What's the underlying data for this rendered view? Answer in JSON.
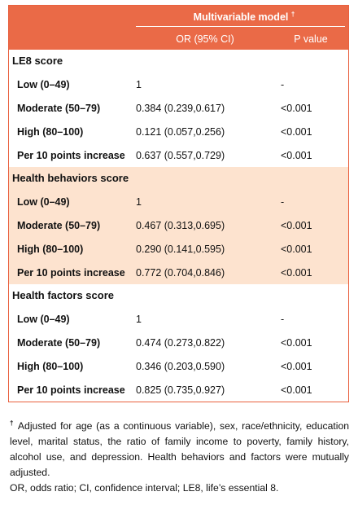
{
  "header": {
    "model_title": "Multivariable model",
    "dagger": "†",
    "col_or": "OR (95% CI)",
    "col_p": "P value"
  },
  "sections": [
    {
      "title": "LE8 score",
      "rows": [
        {
          "label": "Low (0–49)",
          "or": "1",
          "p": "-"
        },
        {
          "label": "Moderate (50–79)",
          "or": "0.384 (0.239,0.617)",
          "p": "<0.001"
        },
        {
          "label": "High (80–100)",
          "or": "0.121 (0.057,0.256)",
          "p": "<0.001"
        },
        {
          "label": "Per 10 points increase",
          "or": "0.637 (0.557,0.729)",
          "p": "<0.001"
        }
      ]
    },
    {
      "title": "Health behaviors score",
      "rows": [
        {
          "label": "Low (0–49)",
          "or": "1",
          "p": "-"
        },
        {
          "label": "Moderate (50–79)",
          "or": "0.467 (0.313,0.695)",
          "p": "<0.001"
        },
        {
          "label": "High (80–100)",
          "or": "0.290 (0.141,0.595)",
          "p": "<0.001"
        },
        {
          "label": "Per 10 points increase",
          "or": "0.772 (0.704,0.846)",
          "p": "<0.001"
        }
      ]
    },
    {
      "title": "Health factors score",
      "rows": [
        {
          "label": "Low (0–49)",
          "or": "1",
          "p": "-"
        },
        {
          "label": "Moderate (50–79)",
          "or": "0.474 (0.273,0.822)",
          "p": "<0.001"
        },
        {
          "label": "High (80–100)",
          "or": "0.346 (0.203,0.590)",
          "p": "<0.001"
        },
        {
          "label": "Per 10 points increase",
          "or": "0.825 (0.735,0.927)",
          "p": "<0.001"
        }
      ]
    }
  ],
  "footnote": {
    "dagger": "†",
    "text": "Adjusted for age (as a continuous variable), sex, race/ethnicity, education level, marital status, the ratio of family income to poverty, family history, alcohol use, and depression. Health behaviors and factors were mutually adjusted.",
    "abbreviations": "OR, odds ratio; CI, confidence interval; LE8, life’s essential 8."
  },
  "colors": {
    "header_bg": "#ea6a47",
    "shaded_bg": "#fde3cf",
    "border": "#e9603f"
  }
}
